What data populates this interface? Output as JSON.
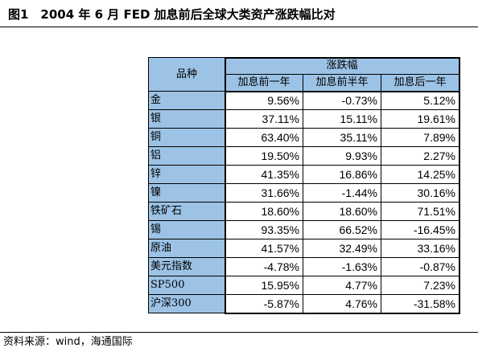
{
  "title": "图1　2004 年 6 月 FED 加息前后全球大类资产涨跌幅比对",
  "table": {
    "corner_label": "品种",
    "group_header": "涨跌幅",
    "col_headers": [
      "加息前一年",
      "加息前半年",
      "加息后一年"
    ],
    "rows": [
      {
        "name": "金",
        "values": [
          "9.56%",
          "-0.73%",
          "5.12%"
        ]
      },
      {
        "name": "银",
        "values": [
          "37.11%",
          "15.11%",
          "19.61%"
        ]
      },
      {
        "name": "铜",
        "values": [
          "63.40%",
          "35.11%",
          "7.89%"
        ]
      },
      {
        "name": "铝",
        "values": [
          "19.50%",
          "9.93%",
          "2.27%"
        ]
      },
      {
        "name": "锌",
        "values": [
          "41.35%",
          "16.86%",
          "14.25%"
        ]
      },
      {
        "name": "镍",
        "values": [
          "31.66%",
          "-1.44%",
          "30.16%"
        ]
      },
      {
        "name": "铁矿石",
        "values": [
          "18.60%",
          "18.60%",
          "71.51%"
        ]
      },
      {
        "name": "锡",
        "values": [
          "93.35%",
          "66.52%",
          "-16.45%"
        ]
      },
      {
        "name": "原油",
        "values": [
          "41.57%",
          "32.49%",
          "33.16%"
        ]
      },
      {
        "name": "美元指数",
        "values": [
          "-4.78%",
          "-1.63%",
          "-0.87%"
        ]
      },
      {
        "name": "SP500",
        "values": [
          "15.95%",
          "4.77%",
          "7.23%"
        ]
      },
      {
        "name": "沪深300",
        "values": [
          "-5.87%",
          "4.76%",
          "-31.58%"
        ]
      }
    ]
  },
  "source": "资料来源：wind，海通国际",
  "colors": {
    "header_fill": "#9cc3e6",
    "border": "#000000"
  }
}
